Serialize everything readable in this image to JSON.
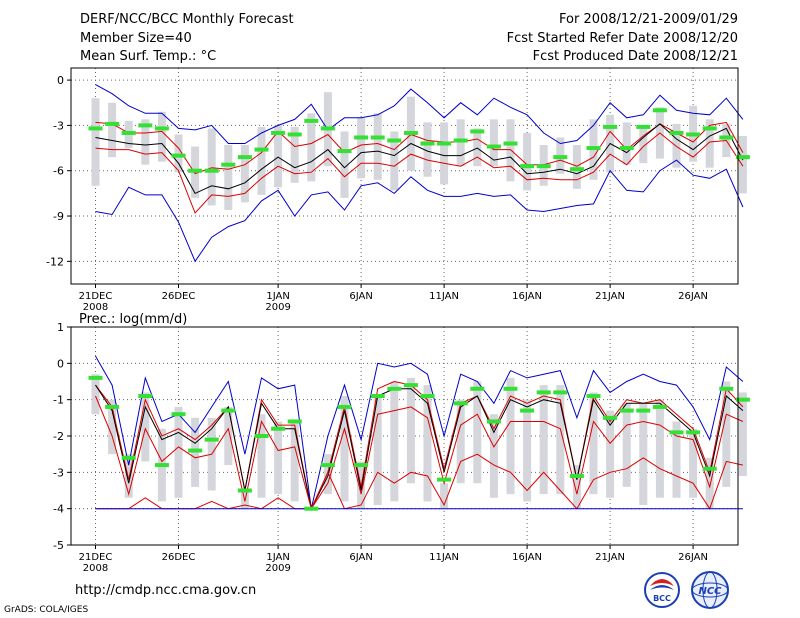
{
  "header": {
    "title": "DERF/NCC/BCC Monthly Forecast",
    "member_size": "Member Size=40",
    "variable": "Mean Surf. Temp.: °C",
    "forecast_period": "For 2008/12/21-2009/01/29",
    "started_date": "Fcst Started Refer Date 2008/12/20",
    "produced_date": "Fcst Produced Date 2008/12/21"
  },
  "footer": {
    "url": "http://cmdp.ncc.cma.gov.cn",
    "credit": "GrADS: COLA/IGES",
    "logo_left_text": "BCC",
    "logo_right_text": "NCC"
  },
  "colors": {
    "mean": "#000000",
    "spread": "#0000cc",
    "percentile": "#dd0000",
    "box": "#d4d6dc",
    "median": "#33e033",
    "grid": "#666666"
  },
  "chart_data": [
    {
      "type": "box-ensemble",
      "title": "Mean Surf. Temp.: °C",
      "ylim": [
        -13.5,
        0.8
      ],
      "yticks": [
        "0",
        "-3",
        "-6",
        "-9",
        "-12"
      ],
      "ytick_values": [
        0,
        -3,
        -6,
        -9,
        -12
      ],
      "xticks": [
        {
          "day": 1,
          "label": "21DEC",
          "sub": "2008"
        },
        {
          "day": 6,
          "label": "26DEC",
          "sub": ""
        },
        {
          "day": 12,
          "label": "1JAN",
          "sub": "2009"
        },
        {
          "day": 17,
          "label": "6JAN",
          "sub": ""
        },
        {
          "day": 22,
          "label": "11JAN",
          "sub": ""
        },
        {
          "day": 27,
          "label": "16JAN",
          "sub": ""
        },
        {
          "day": 32,
          "label": "21JAN",
          "sub": ""
        },
        {
          "day": 37,
          "label": "26JAN",
          "sub": ""
        }
      ],
      "days": [
        1,
        2,
        3,
        4,
        5,
        6,
        7,
        8,
        9,
        10,
        11,
        12,
        13,
        14,
        15,
        16,
        17,
        18,
        19,
        20,
        21,
        22,
        23,
        24,
        25,
        26,
        27,
        28,
        29,
        30,
        31,
        32,
        33,
        34,
        35,
        36,
        37,
        38,
        39,
        40
      ],
      "box_top": [
        -1.2,
        -1.5,
        -2.7,
        -2.6,
        -2.1,
        -3.6,
        -4.4,
        -3.2,
        -4.3,
        -4.3,
        -3.1,
        -3.0,
        -3.1,
        -2.2,
        -0.8,
        -3.4,
        -2.5,
        -2.2,
        -3.4,
        -1.1,
        -2.8,
        -2.8,
        -2.6,
        -3.2,
        -2.6,
        -2.6,
        -3.5,
        -4.3,
        -3.8,
        -4.3,
        -2.6,
        -2.3,
        -2.8,
        -3.1,
        -1.8,
        -2.9,
        -1.7,
        -2.6,
        -2.9,
        -3.7
      ],
      "box_bottom": [
        -7.0,
        -5.1,
        -4.5,
        -5.6,
        -5.4,
        -6.1,
        -7.8,
        -8.3,
        -8.6,
        -8.1,
        -7.6,
        -7.1,
        -6.8,
        -6.7,
        -5.7,
        -7.8,
        -6.5,
        -6.6,
        -7.3,
        -6.0,
        -6.4,
        -6.9,
        -5.7,
        -5.7,
        -5.7,
        -6.7,
        -7.3,
        -7.0,
        -6.2,
        -7.2,
        -6.6,
        -6.1,
        -5.6,
        -5.5,
        -5.2,
        -5.8,
        -5.4,
        -5.8,
        -5.1,
        -7.5
      ],
      "median": [
        -3.2,
        -2.9,
        -3.5,
        -3.0,
        -3.2,
        -5.0,
        -6.0,
        -6.0,
        -5.6,
        -5.1,
        -4.6,
        -3.5,
        -3.6,
        -2.7,
        -3.2,
        -4.7,
        -3.8,
        -3.8,
        -4.0,
        -3.5,
        -4.2,
        -4.2,
        -4.0,
        -3.4,
        -4.4,
        -4.2,
        -5.7,
        -5.7,
        -5.1,
        -5.9,
        -4.5,
        -3.1,
        -4.5,
        -3.1,
        -2.0,
        -3.5,
        -3.6,
        -3.2,
        -3.8,
        -5.1
      ],
      "series": [
        {
          "name": "ensemble maximum",
          "color": "#0000cc",
          "values": [
            -0.3,
            -0.9,
            -1.7,
            -2.2,
            -2.2,
            -3.2,
            -3.3,
            -3.0,
            -4.2,
            -4.2,
            -3.5,
            -3.0,
            -2.6,
            -1.6,
            -3.3,
            -2.5,
            -2.5,
            -2.3,
            -1.7,
            -0.6,
            -1.5,
            -2.5,
            -1.5,
            -2.3,
            -1.2,
            -1.8,
            -2.3,
            -3.5,
            -4.2,
            -4.0,
            -3.0,
            -1.5,
            -2.5,
            -2.3,
            -1.0,
            -2.0,
            -2.2,
            -2.3,
            -1.2,
            -2.6
          ]
        },
        {
          "name": "upper percentile",
          "color": "#dd0000",
          "values": [
            -2.8,
            -2.9,
            -3.5,
            -3.5,
            -3.4,
            -4.5,
            -6.2,
            -5.8,
            -5.9,
            -5.6,
            -4.8,
            -3.4,
            -4.4,
            -4.2,
            -3.6,
            -4.8,
            -4.3,
            -4.2,
            -4.6,
            -3.6,
            -4.0,
            -4.1,
            -4.1,
            -3.9,
            -4.6,
            -4.6,
            -5.6,
            -5.6,
            -5.3,
            -5.7,
            -5.1,
            -3.4,
            -4.6,
            -3.7,
            -2.9,
            -3.5,
            -4.1,
            -3.0,
            -2.8,
            -4.8
          ]
        },
        {
          "name": "ensemble mean",
          "color": "#000000",
          "values": [
            -3.8,
            -4.0,
            -4.2,
            -4.3,
            -4.2,
            -5.5,
            -7.5,
            -7.0,
            -7.2,
            -6.8,
            -5.9,
            -5.1,
            -5.8,
            -5.4,
            -4.6,
            -5.8,
            -4.8,
            -4.7,
            -5.0,
            -4.2,
            -4.7,
            -5.0,
            -5.0,
            -4.5,
            -5.3,
            -5.1,
            -6.2,
            -6.1,
            -5.9,
            -6.2,
            -5.7,
            -4.2,
            -4.8,
            -3.8,
            -2.9,
            -3.9,
            -4.6,
            -3.7,
            -3.2,
            -5.3
          ]
        },
        {
          "name": "lower percentile",
          "color": "#dd0000",
          "values": [
            -4.5,
            -4.6,
            -4.6,
            -4.9,
            -4.8,
            -6.0,
            -8.8,
            -7.6,
            -7.7,
            -7.5,
            -6.5,
            -5.7,
            -6.2,
            -6.1,
            -5.2,
            -6.4,
            -5.5,
            -5.5,
            -5.7,
            -4.9,
            -5.3,
            -5.5,
            -5.7,
            -5.1,
            -5.8,
            -5.7,
            -6.6,
            -6.5,
            -6.6,
            -6.6,
            -6.1,
            -4.9,
            -5.6,
            -4.4,
            -3.5,
            -4.4,
            -5.1,
            -4.1,
            -4.0,
            -5.7
          ]
        },
        {
          "name": "ensemble minimum",
          "color": "#0000cc",
          "values": [
            -8.7,
            -8.9,
            -7.1,
            -7.6,
            -7.6,
            -9.4,
            -12.0,
            -10.4,
            -9.7,
            -9.3,
            -8.0,
            -7.3,
            -9.0,
            -7.6,
            -7.4,
            -8.6,
            -7.0,
            -6.8,
            -7.5,
            -6.4,
            -7.3,
            -7.7,
            -7.7,
            -7.5,
            -7.7,
            -7.6,
            -8.6,
            -8.7,
            -8.5,
            -8.3,
            -8.2,
            -6.0,
            -7.3,
            -7.4,
            -6.0,
            -5.3,
            -6.3,
            -6.5,
            -5.9,
            -8.4
          ]
        }
      ]
    },
    {
      "type": "box-ensemble",
      "title": "Prec.: log(mm/d)",
      "ylim": [
        -5,
        1
      ],
      "yticks": [
        "1",
        "0",
        "-1",
        "-2",
        "-3",
        "-4",
        "-5"
      ],
      "ytick_values": [
        1,
        0,
        -1,
        -2,
        -3,
        -4,
        -5
      ],
      "xticks": [
        {
          "day": 1,
          "label": "21DEC",
          "sub": "2008"
        },
        {
          "day": 6,
          "label": "26DEC",
          "sub": ""
        },
        {
          "day": 12,
          "label": "1JAN",
          "sub": "2009"
        },
        {
          "day": 17,
          "label": "6JAN",
          "sub": ""
        },
        {
          "day": 22,
          "label": "11JAN",
          "sub": ""
        },
        {
          "day": 27,
          "label": "16JAN",
          "sub": ""
        },
        {
          "day": 32,
          "label": "21JAN",
          "sub": ""
        },
        {
          "day": 37,
          "label": "26JAN",
          "sub": ""
        }
      ],
      "days": [
        1,
        2,
        3,
        4,
        5,
        6,
        7,
        8,
        9,
        10,
        11,
        12,
        13,
        14,
        15,
        16,
        17,
        18,
        19,
        20,
        21,
        22,
        23,
        24,
        25,
        26,
        27,
        28,
        29,
        30,
        31,
        32,
        33,
        34,
        35,
        36,
        37,
        38,
        39,
        40
      ],
      "box_top": [
        -0.3,
        -1.0,
        -2.5,
        -0.8,
        -1.8,
        -1.2,
        -1.5,
        -1.5,
        -1.2,
        -3.5,
        -1.4,
        -1.6,
        -1.6,
        -4.0,
        -2.5,
        -0.9,
        -2.7,
        -0.9,
        -0.5,
        -0.4,
        -0.6,
        -3.3,
        -1.0,
        -0.5,
        -1.4,
        -0.4,
        -1.0,
        -0.6,
        -0.6,
        -2.8,
        -0.8,
        -1.3,
        -1.1,
        -1.1,
        -1.0,
        -1.6,
        -1.8,
        -2.6,
        -0.5,
        -0.8
      ],
      "box_bottom": [
        -1.4,
        -2.5,
        -3.7,
        -2.7,
        -3.8,
        -3.7,
        -3.4,
        -3.5,
        -2.8,
        -4.0,
        -3.7,
        -3.6,
        -3.8,
        -4.0,
        -3.6,
        -3.8,
        -4.0,
        -3.9,
        -3.8,
        -3.3,
        -3.8,
        -4.0,
        -3.3,
        -3.3,
        -3.7,
        -3.6,
        -3.8,
        -3.6,
        -3.6,
        -4.0,
        -3.6,
        -3.7,
        -3.4,
        -3.9,
        -3.7,
        -3.7,
        -3.7,
        -4.0,
        -3.4,
        -3.1
      ],
      "median": [
        -0.4,
        -1.2,
        -2.6,
        -0.9,
        -2.8,
        -1.4,
        -2.4,
        -2.1,
        -1.3,
        -3.5,
        -2.0,
        -1.8,
        -1.6,
        -4.0,
        -2.8,
        -1.2,
        -2.8,
        -0.9,
        -0.7,
        -0.6,
        -0.9,
        -3.2,
        -1.1,
        -0.7,
        -1.6,
        -0.7,
        -1.3,
        -0.8,
        -0.8,
        -3.1,
        -0.9,
        -1.5,
        -1.3,
        -1.3,
        -1.2,
        -1.9,
        -1.9,
        -2.9,
        -0.7,
        -1.0
      ],
      "series": [
        {
          "name": "ensemble maximum",
          "color": "#0000cc",
          "values": [
            0.2,
            -0.6,
            -2.8,
            -0.4,
            -1.6,
            -1.4,
            -1.9,
            -1.2,
            -0.5,
            -2.5,
            -0.4,
            -0.7,
            -0.6,
            -4.0,
            -2.0,
            -0.6,
            -2.1,
            0.0,
            -0.1,
            0.0,
            -0.3,
            -2.0,
            -0.3,
            -0.5,
            -1.1,
            -0.2,
            -0.4,
            -0.3,
            -0.2,
            -1.5,
            -0.2,
            -0.8,
            -0.5,
            -0.3,
            -0.5,
            -0.6,
            -1.2,
            -2.1,
            -0.1,
            -0.5
          ]
        },
        {
          "name": "upper percentile",
          "color": "#dd0000",
          "values": [
            -0.6,
            -1.2,
            -3.2,
            -1.0,
            -2.0,
            -1.8,
            -2.1,
            -1.7,
            -1.2,
            -3.5,
            -1.0,
            -1.7,
            -1.7,
            -4.0,
            -3.0,
            -1.2,
            -3.4,
            -0.7,
            -0.5,
            -0.6,
            -1.0,
            -2.9,
            -1.1,
            -0.9,
            -1.8,
            -0.9,
            -1.1,
            -0.9,
            -1.0,
            -3.2,
            -0.9,
            -1.6,
            -1.0,
            -1.1,
            -1.0,
            -1.4,
            -1.8,
            -3.0,
            -0.7,
            -1.2
          ]
        },
        {
          "name": "ensemble mean",
          "color": "#000000",
          "values": [
            -0.6,
            -1.3,
            -3.3,
            -1.2,
            -2.1,
            -1.9,
            -2.2,
            -1.8,
            -1.2,
            -3.5,
            -1.1,
            -1.8,
            -1.8,
            -4.0,
            -3.1,
            -1.3,
            -3.5,
            -0.9,
            -0.7,
            -0.7,
            -1.1,
            -3.0,
            -1.2,
            -0.9,
            -1.9,
            -1.0,
            -1.2,
            -1.0,
            -1.1,
            -3.2,
            -1.0,
            -1.7,
            -1.1,
            -1.1,
            -1.1,
            -1.5,
            -1.9,
            -3.1,
            -0.9,
            -1.3
          ]
        },
        {
          "name": "lower percentile",
          "color": "#dd0000",
          "values": [
            -0.9,
            -2.0,
            -3.6,
            -1.8,
            -2.7,
            -2.3,
            -2.6,
            -2.5,
            -1.8,
            -3.8,
            -1.6,
            -2.4,
            -2.3,
            -4.0,
            -3.3,
            -1.8,
            -3.6,
            -1.4,
            -1.3,
            -1.2,
            -1.5,
            -3.3,
            -1.7,
            -1.4,
            -2.3,
            -1.6,
            -1.6,
            -1.6,
            -1.8,
            -3.6,
            -1.6,
            -2.2,
            -1.7,
            -1.6,
            -1.7,
            -2.0,
            -2.1,
            -3.4,
            -1.4,
            -1.6
          ]
        },
        {
          "name": "lower percentile 2",
          "color": "#dd0000",
          "values": [
            -4.0,
            -4.0,
            -4.0,
            -3.7,
            -4.0,
            -4.0,
            -4.0,
            -3.8,
            -4.0,
            -3.9,
            -4.0,
            -3.7,
            -4.0,
            -4.0,
            -3.0,
            -4.0,
            -3.9,
            -3.0,
            -3.3,
            -3.0,
            -3.1,
            -3.9,
            -2.7,
            -2.5,
            -2.8,
            -3.0,
            -3.5,
            -3.0,
            -3.5,
            -4.0,
            -3.2,
            -3.0,
            -2.9,
            -2.6,
            -2.9,
            -3.1,
            -3.3,
            -4.0,
            -2.7,
            -2.8
          ]
        },
        {
          "name": "ensemble minimum",
          "color": "#0000cc",
          "values": [
            -4.0,
            -4.0,
            -4.0,
            -4.0,
            -4.0,
            -4.0,
            -4.0,
            -4.0,
            -4.0,
            -4.0,
            -4.0,
            -4.0,
            -4.0,
            -4.0,
            -4.0,
            -4.0,
            -4.0,
            -4.0,
            -4.0,
            -4.0,
            -4.0,
            -4.0,
            -4.0,
            -4.0,
            -4.0,
            -4.0,
            -4.0,
            -4.0,
            -4.0,
            -4.0,
            -4.0,
            -4.0,
            -4.0,
            -4.0,
            -4.0,
            -4.0,
            -4.0,
            -4.0,
            -4.0,
            -4.0
          ]
        }
      ]
    }
  ]
}
